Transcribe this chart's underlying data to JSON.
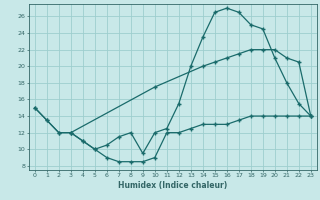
{
  "xlabel": "Humidex (Indice chaleur)",
  "background_color": "#c8e8e8",
  "grid_color": "#9ecece",
  "line_color": "#1a6b6b",
  "xlim": [
    -0.5,
    23.5
  ],
  "ylim": [
    7.5,
    27.5
  ],
  "xticks": [
    0,
    1,
    2,
    3,
    4,
    5,
    6,
    7,
    8,
    9,
    10,
    11,
    12,
    13,
    14,
    15,
    16,
    17,
    18,
    19,
    20,
    21,
    22,
    23
  ],
  "yticks": [
    8,
    10,
    12,
    14,
    16,
    18,
    20,
    22,
    24,
    26
  ],
  "line1_x": [
    0,
    1,
    2,
    3,
    4,
    5,
    6,
    7,
    8,
    9,
    10,
    11,
    12,
    13,
    14,
    15,
    16,
    17,
    18,
    19,
    20,
    21,
    22,
    23
  ],
  "line1_y": [
    15,
    13.5,
    12,
    12,
    11,
    10,
    9,
    8.5,
    8.5,
    8.5,
    9,
    12,
    12,
    12.5,
    13,
    13,
    13,
    13.5,
    14,
    14,
    14,
    14,
    14,
    14
  ],
  "line2_x": [
    0,
    1,
    2,
    3,
    4,
    5,
    6,
    7,
    8,
    9,
    10,
    11,
    12,
    13,
    14,
    15,
    16,
    17,
    18,
    19,
    20,
    21,
    22,
    23
  ],
  "line2_y": [
    15,
    13.5,
    12,
    12,
    11,
    10,
    10.5,
    11.5,
    12,
    9.5,
    12,
    12.5,
    15.5,
    20,
    23.5,
    26.5,
    27,
    26.5,
    25,
    24.5,
    21,
    18,
    15.5,
    14
  ],
  "line3_x": [
    3,
    10,
    14,
    15,
    16,
    17,
    18,
    19,
    20,
    21,
    22,
    23
  ],
  "line3_y": [
    12,
    17.5,
    20,
    20.5,
    21,
    21.5,
    22,
    22,
    22,
    21,
    20.5,
    14
  ]
}
